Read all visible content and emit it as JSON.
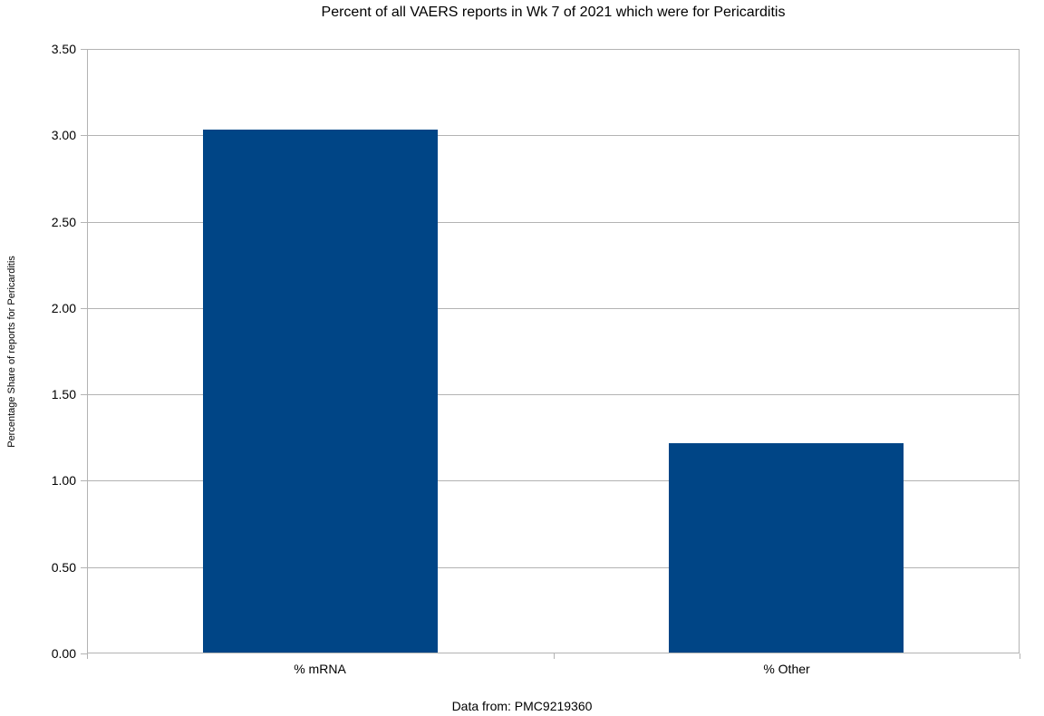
{
  "chart_data": {
    "type": "bar",
    "title": "Percent of all VAERS reports in Wk 7 of 2021 which were for Pericarditis",
    "categories": [
      "% mRNA",
      "% Other"
    ],
    "values": [
      3.03,
      1.21
    ],
    "xlabel": "",
    "ylabel": "Percentage Share of reports for Pericarditis",
    "ylim": [
      0,
      3.5
    ],
    "yticks": [
      "0.00",
      "0.50",
      "1.00",
      "1.50",
      "2.00",
      "2.50",
      "3.00",
      "3.50"
    ],
    "grid": true,
    "legend": "none",
    "annotation": "Data from: PMC9219360",
    "colors": {
      "bar": "#004586",
      "gridline": "#b3b3b3",
      "axis": "#b3b3b3",
      "text": "#000000",
      "background": "#ffffff"
    }
  }
}
